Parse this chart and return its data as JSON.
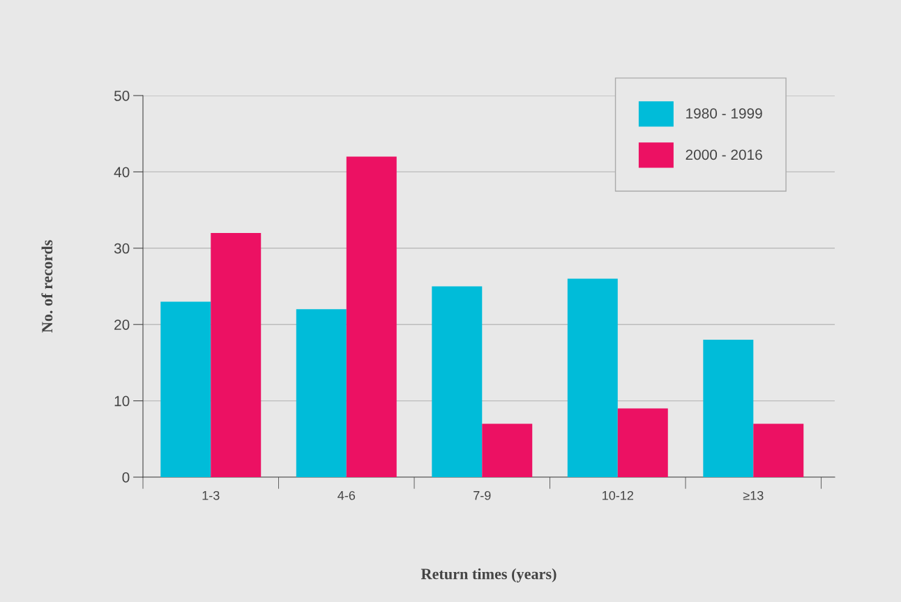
{
  "chart_data": {
    "type": "bar",
    "xlabel": "Return times (years)",
    "ylabel": "No. of records",
    "categories": [
      "1-3",
      "4-6",
      "7-9",
      "10-12",
      "≥13"
    ],
    "series": [
      {
        "name": "1980 - 1999",
        "color": "#00bcd9",
        "values": [
          23,
          22,
          25,
          26,
          18
        ]
      },
      {
        "name": "2000 - 2016",
        "color": "#ec1163",
        "values": [
          32,
          42,
          7,
          9,
          7
        ]
      }
    ],
    "ylim": [
      0,
      50
    ],
    "yticks": [
      0,
      10,
      20,
      30,
      40,
      50
    ],
    "grid": "y",
    "legend": "top right"
  }
}
